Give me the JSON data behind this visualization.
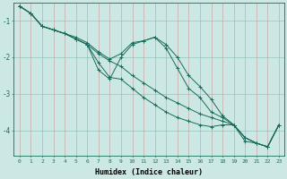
{
  "xlabel": "Humidex (Indice chaleur)",
  "bg_color": "#cce8e4",
  "line_color": "#1a6b5a",
  "xlim": [
    -0.5,
    23.5
  ],
  "ylim": [
    -4.7,
    -0.5
  ],
  "yticks": [
    -4,
    -3,
    -2,
    -1
  ],
  "xticks": [
    0,
    1,
    2,
    3,
    4,
    5,
    6,
    7,
    8,
    9,
    10,
    11,
    12,
    13,
    14,
    15,
    16,
    17,
    18,
    19,
    20,
    21,
    22,
    23
  ],
  "series": [
    {
      "x": [
        0,
        1,
        2,
        3,
        4,
        5,
        6,
        7,
        8,
        9,
        10,
        11,
        12,
        13,
        14,
        15,
        16,
        17,
        18,
        19,
        20,
        21,
        22,
        23
      ],
      "y": [
        -0.6,
        -0.8,
        -1.15,
        -1.25,
        -1.35,
        -1.45,
        -1.6,
        -1.85,
        -2.05,
        -1.9,
        -1.6,
        -1.55,
        -1.45,
        -1.65,
        -2.0,
        -2.5,
        -2.8,
        -3.15,
        -3.6,
        -3.85,
        -4.3,
        -4.35,
        -4.45,
        -3.85
      ]
    },
    {
      "x": [
        0,
        1,
        2,
        3,
        4,
        5,
        6,
        7,
        8,
        9,
        10,
        11,
        12,
        13,
        14,
        15,
        16,
        17,
        18,
        19,
        20,
        21,
        22,
        23
      ],
      "y": [
        -0.6,
        -0.8,
        -1.15,
        -1.25,
        -1.35,
        -1.5,
        -1.65,
        -1.9,
        -2.1,
        -2.25,
        -2.5,
        -2.7,
        -2.9,
        -3.1,
        -3.25,
        -3.4,
        -3.55,
        -3.65,
        -3.75,
        -3.85,
        -4.2,
        -4.35,
        -4.45,
        -3.85
      ]
    },
    {
      "x": [
        0,
        1,
        2,
        3,
        4,
        5,
        6,
        7,
        8,
        9,
        10,
        11,
        12,
        13,
        14,
        15,
        16,
        17,
        18,
        19,
        20,
        21,
        22,
        23
      ],
      "y": [
        -0.6,
        -0.8,
        -1.15,
        -1.25,
        -1.35,
        -1.5,
        -1.65,
        -2.15,
        -2.55,
        -2.6,
        -2.85,
        -3.1,
        -3.3,
        -3.5,
        -3.65,
        -3.75,
        -3.85,
        -3.9,
        -3.85,
        -3.85,
        -4.2,
        -4.35,
        -4.45,
        -3.85
      ]
    },
    {
      "x": [
        0,
        1,
        2,
        3,
        4,
        5,
        6,
        7,
        8,
        9,
        10,
        11,
        12,
        13,
        14,
        15,
        16,
        17,
        18,
        19,
        20,
        21,
        22,
        23
      ],
      "y": [
        -0.6,
        -0.8,
        -1.15,
        -1.25,
        -1.35,
        -1.5,
        -1.65,
        -2.35,
        -2.6,
        -2.0,
        -1.65,
        -1.55,
        -1.45,
        -1.75,
        -2.3,
        -2.85,
        -3.1,
        -3.5,
        -3.65,
        -3.85,
        -4.2,
        -4.35,
        -4.45,
        -3.85
      ]
    }
  ]
}
